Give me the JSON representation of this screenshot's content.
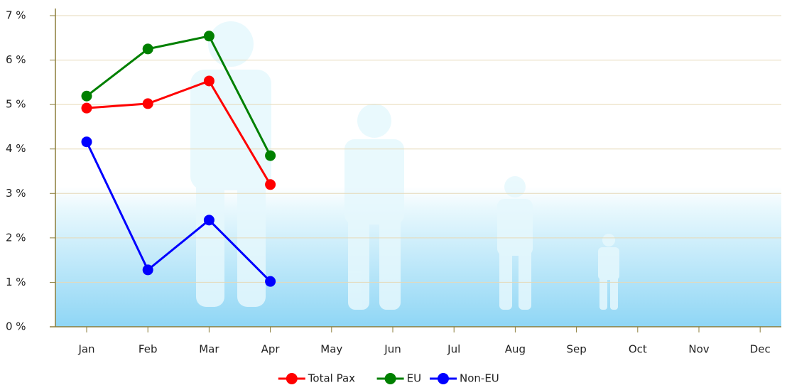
{
  "chart_data": {
    "type": "line",
    "categories": [
      "Jan",
      "Feb",
      "Mar",
      "Apr",
      "May",
      "Jun",
      "Jul",
      "Aug",
      "Sep",
      "Oct",
      "Nov",
      "Dec"
    ],
    "series": [
      {
        "name": "Total Pax",
        "color": "#ff0000",
        "values": [
          4.92,
          5.02,
          5.53,
          3.2,
          null,
          null,
          null,
          null,
          null,
          null,
          null,
          null
        ]
      },
      {
        "name": "EU",
        "color": "#008000",
        "values": [
          5.19,
          6.25,
          6.54,
          3.85,
          null,
          null,
          null,
          null,
          null,
          null,
          null,
          null
        ]
      },
      {
        "name": "Non-EU",
        "color": "#0000ff",
        "values": [
          4.16,
          1.28,
          2.4,
          1.02,
          null,
          null,
          null,
          null,
          null,
          null,
          null,
          null
        ]
      }
    ],
    "ylim": [
      0,
      7
    ],
    "yticks": [
      {
        "value": 0,
        "label": "0 %"
      },
      {
        "value": 1,
        "label": "1 %"
      },
      {
        "value": 2,
        "label": "2 %"
      },
      {
        "value": 3,
        "label": "3 %"
      },
      {
        "value": 4,
        "label": "4 %"
      },
      {
        "value": 5,
        "label": "5 %"
      },
      {
        "value": 6,
        "label": "6 %"
      },
      {
        "value": 7,
        "label": "7 %"
      }
    ],
    "grid": true
  }
}
